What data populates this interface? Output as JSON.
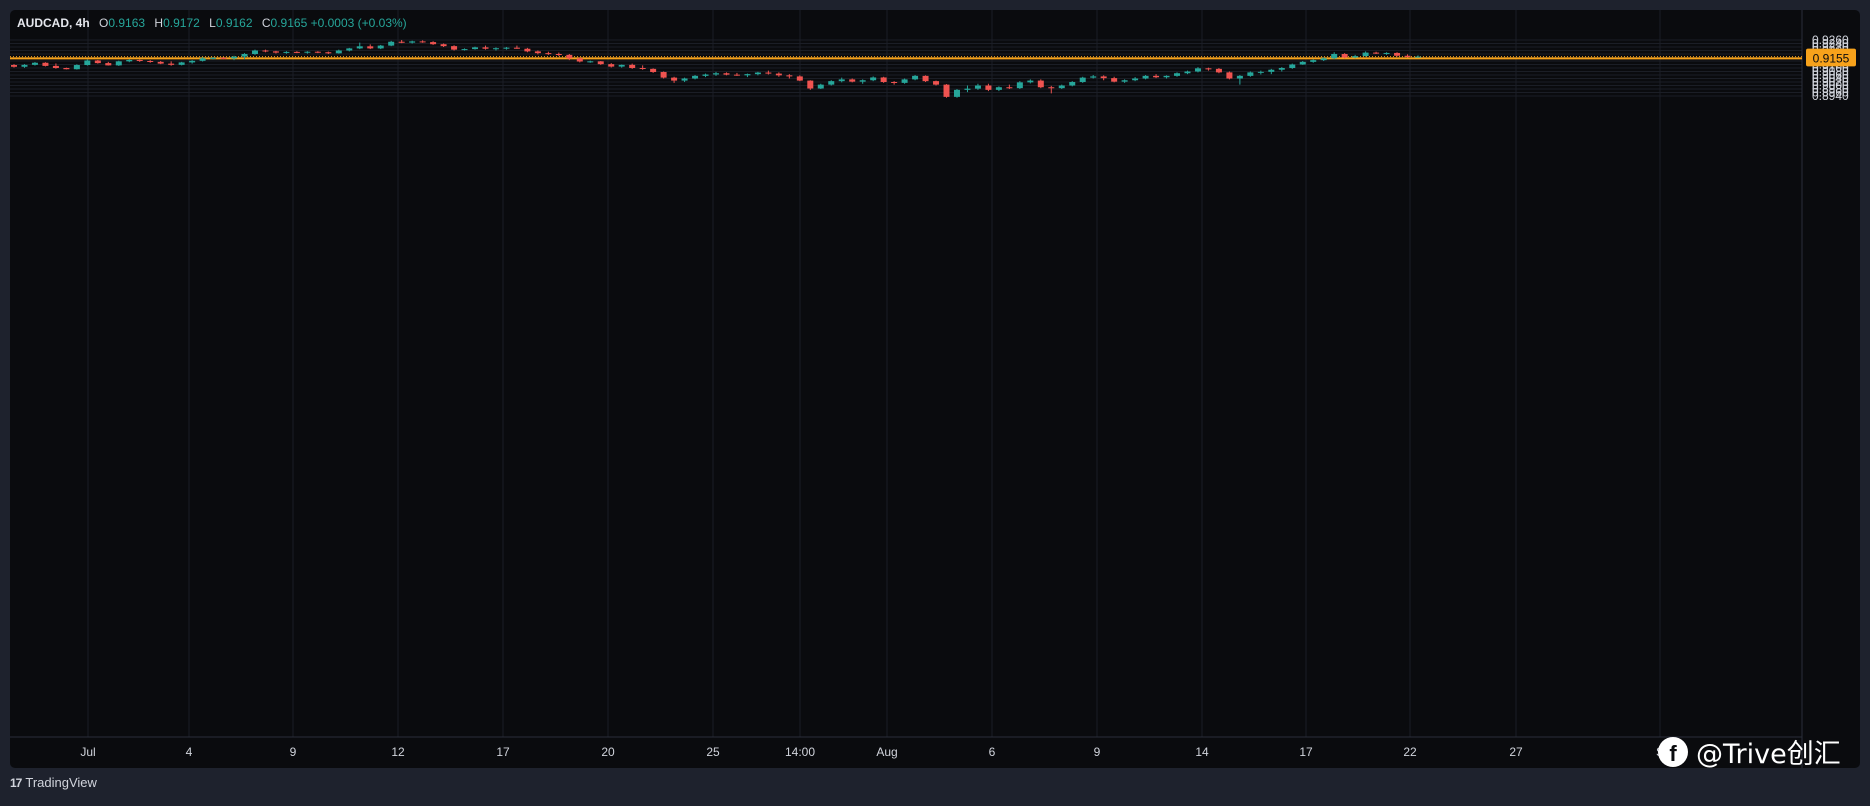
{
  "legend": {
    "symbol": "AUDCAD",
    "interval": "4h",
    "o_label": "O",
    "o_value": "0.9163",
    "h_label": "H",
    "h_value": "0.9172",
    "l_label": "L",
    "l_value": "0.9162",
    "c_label": "C",
    "c_value": "0.9165",
    "change": "+0.0003 (+0.03%)"
  },
  "footer": {
    "brand": "TradingView",
    "logo": "17"
  },
  "watermark": {
    "icon": "facebook-icon",
    "text": "@Trive创汇"
  },
  "colors": {
    "background": "#0a0b0e",
    "frame": "#1e222d",
    "up": "#26a69a",
    "down": "#ef5350",
    "level": "#f7a21b",
    "grid": "#1b1e26",
    "text": "#d1d4dc"
  },
  "chart_data": {
    "type": "candlestick",
    "symbol": "AUDCAD",
    "interval": "4h",
    "ylim": [
      0.8928,
      0.9268
    ],
    "yticks": [
      "0.9260",
      "0.9240",
      "0.9220",
      "0.9200",
      "0.9180",
      "0.9160",
      "0.9140",
      "0.9120",
      "0.9100",
      "0.9080",
      "0.9060",
      "0.9040",
      "0.9020",
      "0.9000",
      "0.8980",
      "0.8960",
      "0.8940"
    ],
    "xticks": [
      "Jul",
      "4",
      "9",
      "12",
      "17",
      "20",
      "25",
      "14:00",
      "Aug",
      "6",
      "9",
      "14",
      "17",
      "22",
      "27",
      "S"
    ],
    "grid": true,
    "levels": [
      {
        "label": "0.9165",
        "value": 0.9165,
        "style": "dotted"
      },
      {
        "label": "0.9155",
        "value": 0.9155,
        "style": "solid"
      }
    ],
    "candles": [
      [
        0.9117,
        0.9122,
        0.9103,
        0.9107
      ],
      [
        0.9107,
        0.9122,
        0.9101,
        0.9118
      ],
      [
        0.9118,
        0.9134,
        0.9114,
        0.913
      ],
      [
        0.913,
        0.9133,
        0.9109,
        0.9112
      ],
      [
        0.9112,
        0.9126,
        0.9096,
        0.91
      ],
      [
        0.91,
        0.9102,
        0.9092,
        0.9093
      ],
      [
        0.9093,
        0.9121,
        0.9091,
        0.9117
      ],
      [
        0.9117,
        0.9148,
        0.9114,
        0.9143
      ],
      [
        0.9143,
        0.9146,
        0.9125,
        0.9128
      ],
      [
        0.9128,
        0.9135,
        0.9114,
        0.9115
      ],
      [
        0.9115,
        0.9142,
        0.9112,
        0.9138
      ],
      [
        0.9138,
        0.915,
        0.9133,
        0.9146
      ],
      [
        0.9146,
        0.9148,
        0.9135,
        0.914
      ],
      [
        0.914,
        0.9145,
        0.913,
        0.9135
      ],
      [
        0.9135,
        0.914,
        0.9122,
        0.9125
      ],
      [
        0.9125,
        0.9138,
        0.9113,
        0.9118
      ],
      [
        0.9118,
        0.9135,
        0.9115,
        0.9132
      ],
      [
        0.9132,
        0.9145,
        0.9125,
        0.9141
      ],
      [
        0.9141,
        0.9163,
        0.9137,
        0.9155
      ],
      [
        0.9155,
        0.9162,
        0.9148,
        0.9158
      ],
      [
        0.9158,
        0.9163,
        0.915,
        0.9155
      ],
      [
        0.9155,
        0.917,
        0.9145,
        0.9165
      ],
      [
        0.9165,
        0.9185,
        0.915,
        0.918
      ],
      [
        0.918,
        0.9205,
        0.9175,
        0.92
      ],
      [
        0.92,
        0.9205,
        0.919,
        0.9195
      ],
      [
        0.9195,
        0.9198,
        0.9183,
        0.9188
      ],
      [
        0.9188,
        0.9196,
        0.9182,
        0.9192
      ],
      [
        0.9192,
        0.9196,
        0.9185,
        0.919
      ],
      [
        0.919,
        0.9196,
        0.9182,
        0.9193
      ],
      [
        0.9193,
        0.9196,
        0.9185,
        0.919
      ],
      [
        0.919,
        0.9194,
        0.918,
        0.9184
      ],
      [
        0.9184,
        0.9205,
        0.9182,
        0.92
      ],
      [
        0.92,
        0.9215,
        0.9195,
        0.9212
      ],
      [
        0.9212,
        0.9245,
        0.9208,
        0.9224
      ],
      [
        0.9224,
        0.9235,
        0.9208,
        0.9212
      ],
      [
        0.9212,
        0.9232,
        0.9208,
        0.9228
      ],
      [
        0.9228,
        0.9255,
        0.9225,
        0.925
      ],
      [
        0.925,
        0.926,
        0.9242,
        0.9245
      ],
      [
        0.9245,
        0.9256,
        0.924,
        0.9252
      ],
      [
        0.9252,
        0.9258,
        0.9244,
        0.9248
      ],
      [
        0.9248,
        0.9253,
        0.9232,
        0.9236
      ],
      [
        0.9236,
        0.924,
        0.922,
        0.9225
      ],
      [
        0.9225,
        0.923,
        0.92,
        0.9205
      ],
      [
        0.9205,
        0.9212,
        0.92,
        0.9208
      ],
      [
        0.9208,
        0.9222,
        0.9205,
        0.9218
      ],
      [
        0.9218,
        0.9228,
        0.9205,
        0.921
      ],
      [
        0.921,
        0.9218,
        0.92,
        0.9213
      ],
      [
        0.9213,
        0.922,
        0.9205,
        0.9216
      ],
      [
        0.9216,
        0.9228,
        0.921,
        0.921
      ],
      [
        0.921,
        0.9215,
        0.919,
        0.9195
      ],
      [
        0.9195,
        0.92,
        0.9178,
        0.9185
      ],
      [
        0.9185,
        0.9193,
        0.9175,
        0.918
      ],
      [
        0.918,
        0.9188,
        0.9168,
        0.9175
      ],
      [
        0.9175,
        0.918,
        0.9145,
        0.9155
      ],
      [
        0.9155,
        0.916,
        0.9132,
        0.9137
      ],
      [
        0.9137,
        0.9142,
        0.913,
        0.9138
      ],
      [
        0.9138,
        0.914,
        0.9118,
        0.9122
      ],
      [
        0.9122,
        0.9128,
        0.9103,
        0.9108
      ],
      [
        0.9108,
        0.912,
        0.9102,
        0.9118
      ],
      [
        0.9118,
        0.9125,
        0.9095,
        0.91
      ],
      [
        0.91,
        0.9115,
        0.909,
        0.9095
      ],
      [
        0.9095,
        0.9098,
        0.9072,
        0.9077
      ],
      [
        0.9077,
        0.908,
        0.904,
        0.9045
      ],
      [
        0.9045,
        0.905,
        0.9015,
        0.9028
      ],
      [
        0.9028,
        0.9045,
        0.902,
        0.904
      ],
      [
        0.904,
        0.906,
        0.9035,
        0.9055
      ],
      [
        0.9055,
        0.9068,
        0.9048,
        0.9063
      ],
      [
        0.9063,
        0.9078,
        0.9055,
        0.907
      ],
      [
        0.907,
        0.9075,
        0.9058,
        0.9062
      ],
      [
        0.9062,
        0.9072,
        0.9055,
        0.9058
      ],
      [
        0.9058,
        0.9068,
        0.9048,
        0.9065
      ],
      [
        0.9065,
        0.9078,
        0.9058,
        0.9074
      ],
      [
        0.9074,
        0.9085,
        0.9063,
        0.9068
      ],
      [
        0.9068,
        0.9075,
        0.905,
        0.9058
      ],
      [
        0.9058,
        0.9065,
        0.904,
        0.9052
      ],
      [
        0.9052,
        0.9058,
        0.9025,
        0.9028
      ],
      [
        0.9028,
        0.903,
        0.8975,
        0.8983
      ],
      [
        0.8983,
        0.901,
        0.898,
        0.9005
      ],
      [
        0.9005,
        0.903,
        0.9,
        0.9025
      ],
      [
        0.9025,
        0.9045,
        0.9018,
        0.9035
      ],
      [
        0.9035,
        0.904,
        0.9018,
        0.9022
      ],
      [
        0.9022,
        0.9035,
        0.901,
        0.903
      ],
      [
        0.903,
        0.9052,
        0.9025,
        0.9046
      ],
      [
        0.9046,
        0.905,
        0.9015,
        0.902
      ],
      [
        0.902,
        0.9025,
        0.9005,
        0.9015
      ],
      [
        0.9015,
        0.904,
        0.901,
        0.9035
      ],
      [
        0.9035,
        0.906,
        0.903,
        0.9055
      ],
      [
        0.9055,
        0.9058,
        0.902,
        0.9025
      ],
      [
        0.9025,
        0.9028,
        0.9,
        0.9005
      ],
      [
        0.9005,
        0.9008,
        0.893,
        0.8935
      ],
      [
        0.8935,
        0.898,
        0.893,
        0.8975
      ],
      [
        0.8975,
        0.9,
        0.8962,
        0.8982
      ],
      [
        0.8982,
        0.901,
        0.8975,
        0.9
      ],
      [
        0.9,
        0.901,
        0.8968,
        0.8975
      ],
      [
        0.8975,
        0.8995,
        0.8968,
        0.899
      ],
      [
        0.899,
        0.9005,
        0.898,
        0.8985
      ],
      [
        0.8985,
        0.9025,
        0.898,
        0.9018
      ],
      [
        0.9018,
        0.9035,
        0.9012,
        0.9028
      ],
      [
        0.9028,
        0.9035,
        0.8985,
        0.899
      ],
      [
        0.899,
        0.8998,
        0.8955,
        0.8985
      ],
      [
        0.8985,
        0.9005,
        0.898,
        0.9
      ],
      [
        0.9,
        0.9025,
        0.8995,
        0.902
      ],
      [
        0.902,
        0.905,
        0.9015,
        0.9045
      ],
      [
        0.9045,
        0.906,
        0.904,
        0.9052
      ],
      [
        0.9052,
        0.9058,
        0.903,
        0.9042
      ],
      [
        0.9042,
        0.905,
        0.9018,
        0.9022
      ],
      [
        0.9022,
        0.9035,
        0.9015,
        0.903
      ],
      [
        0.903,
        0.9048,
        0.9025,
        0.904
      ],
      [
        0.904,
        0.906,
        0.9035,
        0.9055
      ],
      [
        0.9055,
        0.9065,
        0.9042,
        0.9047
      ],
      [
        0.9047,
        0.9058,
        0.904,
        0.9055
      ],
      [
        0.9055,
        0.9075,
        0.905,
        0.907
      ],
      [
        0.907,
        0.9085,
        0.9065,
        0.908
      ],
      [
        0.908,
        0.9105,
        0.9075,
        0.9098
      ],
      [
        0.9098,
        0.9102,
        0.9085,
        0.9095
      ],
      [
        0.9095,
        0.91,
        0.907,
        0.9075
      ],
      [
        0.9075,
        0.908,
        0.9035,
        0.904
      ],
      [
        0.904,
        0.906,
        0.9005,
        0.9055
      ],
      [
        0.9055,
        0.908,
        0.905,
        0.9075
      ],
      [
        0.9075,
        0.9085,
        0.9063,
        0.9078
      ],
      [
        0.9078,
        0.9095,
        0.9065,
        0.909
      ],
      [
        0.909,
        0.9105,
        0.908,
        0.91
      ],
      [
        0.91,
        0.9125,
        0.9095,
        0.912
      ],
      [
        0.912,
        0.914,
        0.9118,
        0.9135
      ],
      [
        0.9135,
        0.915,
        0.913,
        0.9145
      ],
      [
        0.9145,
        0.916,
        0.914,
        0.9155
      ],
      [
        0.9155,
        0.919,
        0.915,
        0.918
      ],
      [
        0.918,
        0.9185,
        0.9155,
        0.916
      ],
      [
        0.916,
        0.9175,
        0.9155,
        0.9168
      ],
      [
        0.9168,
        0.9195,
        0.9165,
        0.9188
      ],
      [
        0.9188,
        0.9193,
        0.918,
        0.9184
      ],
      [
        0.9184,
        0.919,
        0.9175,
        0.9186
      ],
      [
        0.9186,
        0.919,
        0.9165,
        0.917
      ],
      [
        0.917,
        0.9178,
        0.916,
        0.9163
      ],
      [
        0.9163,
        0.9172,
        0.9162,
        0.9165
      ]
    ]
  }
}
